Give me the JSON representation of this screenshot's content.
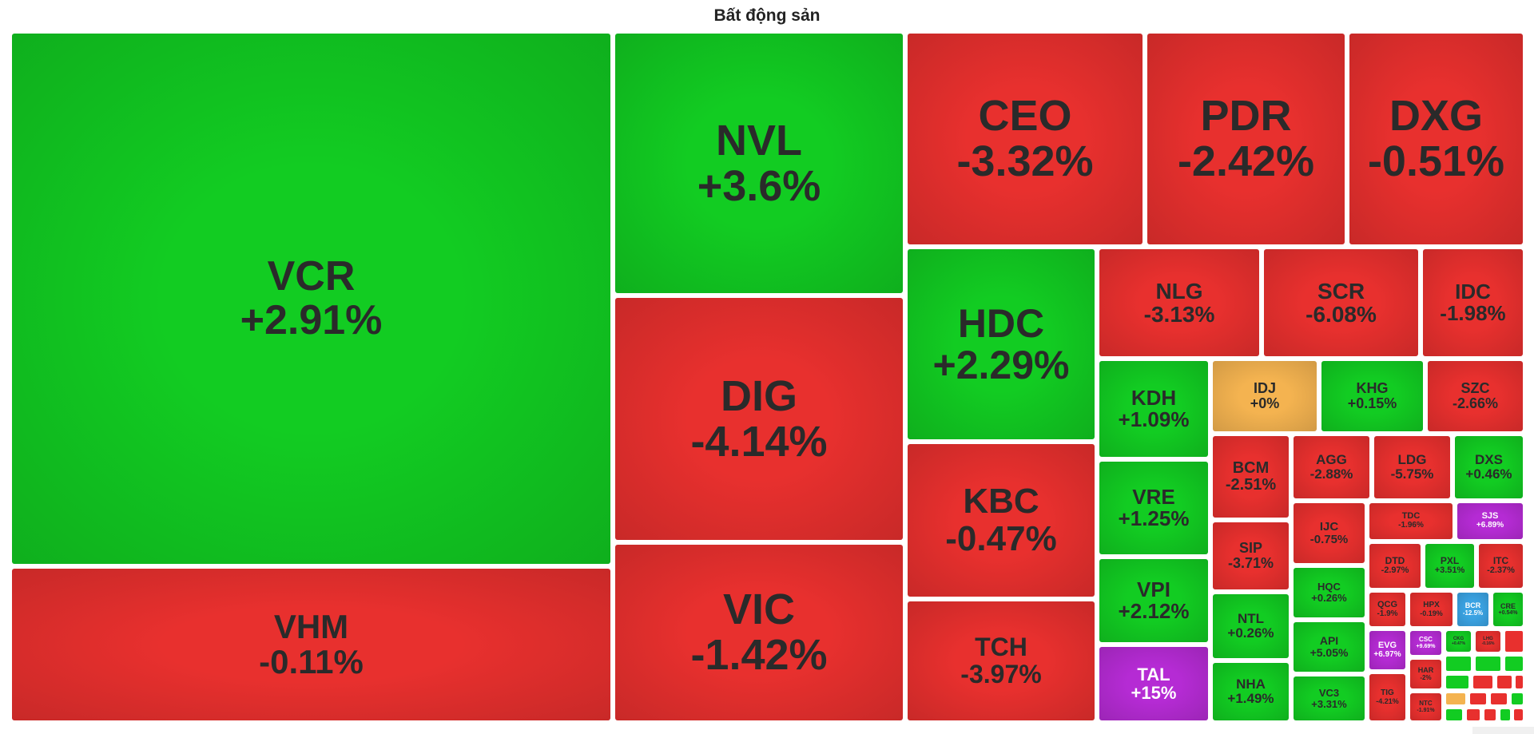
{
  "chart_data": {
    "type": "treemap",
    "title": "Bất động sản",
    "colors": {
      "up": "#12cc22",
      "down": "#e8302e",
      "flat": "#f4b350",
      "ceiling": "#b52bd4",
      "floor": "#3aa3e3"
    },
    "items": [
      {
        "ticker": "VCR",
        "change": "+2.91%",
        "value": 2.91
      },
      {
        "ticker": "VHM",
        "change": "-0.11%",
        "value": -0.11
      },
      {
        "ticker": "NVL",
        "change": "+3.6%",
        "value": 3.6
      },
      {
        "ticker": "DIG",
        "change": "-4.14%",
        "value": -4.14
      },
      {
        "ticker": "VIC",
        "change": "-1.42%",
        "value": -1.42
      },
      {
        "ticker": "CEO",
        "change": "-3.32%",
        "value": -3.32
      },
      {
        "ticker": "PDR",
        "change": "-2.42%",
        "value": -2.42
      },
      {
        "ticker": "DXG",
        "change": "-0.51%",
        "value": -0.51
      },
      {
        "ticker": "HDC",
        "change": "+2.29%",
        "value": 2.29
      },
      {
        "ticker": "KBC",
        "change": "-0.47%",
        "value": -0.47
      },
      {
        "ticker": "TCH",
        "change": "-3.97%",
        "value": -3.97
      },
      {
        "ticker": "NLG",
        "change": "-3.13%",
        "value": -3.13
      },
      {
        "ticker": "SCR",
        "change": "-6.08%",
        "value": -6.08
      },
      {
        "ticker": "IDC",
        "change": "-1.98%",
        "value": -1.98
      },
      {
        "ticker": "KDH",
        "change": "+1.09%",
        "value": 1.09
      },
      {
        "ticker": "VRE",
        "change": "+1.25%",
        "value": 1.25
      },
      {
        "ticker": "VPI",
        "change": "+2.12%",
        "value": 2.12
      },
      {
        "ticker": "TAL",
        "change": "+15%",
        "value": 15,
        "state": "ceiling"
      },
      {
        "ticker": "IDJ",
        "change": "+0%",
        "value": 0
      },
      {
        "ticker": "KHG",
        "change": "+0.15%",
        "value": 0.15
      },
      {
        "ticker": "SZC",
        "change": "-2.66%",
        "value": -2.66
      },
      {
        "ticker": "BCM",
        "change": "-2.51%",
        "value": -2.51
      },
      {
        "ticker": "SIP",
        "change": "-3.71%",
        "value": -3.71
      },
      {
        "ticker": "NTL",
        "change": "+0.26%",
        "value": 0.26
      },
      {
        "ticker": "NHA",
        "change": "+1.49%",
        "value": 1.49
      },
      {
        "ticker": "AGG",
        "change": "-2.88%",
        "value": -2.88
      },
      {
        "ticker": "LDG",
        "change": "-5.75%",
        "value": -5.75
      },
      {
        "ticker": "DXS",
        "change": "+0.46%",
        "value": 0.46
      },
      {
        "ticker": "IJC",
        "change": "-0.75%",
        "value": -0.75
      },
      {
        "ticker": "HQC",
        "change": "+0.26%",
        "value": 0.26
      },
      {
        "ticker": "API",
        "change": "+5.05%",
        "value": 5.05
      },
      {
        "ticker": "VC3",
        "change": "+3.31%",
        "value": 3.31
      },
      {
        "ticker": "TDC",
        "change": "-1.96%",
        "value": -1.96
      },
      {
        "ticker": "SJS",
        "change": "+6.89%",
        "value": 6.89,
        "state": "ceiling"
      },
      {
        "ticker": "DTD",
        "change": "-2.97%",
        "value": -2.97
      },
      {
        "ticker": "PXL",
        "change": "+3.51%",
        "value": 3.51
      },
      {
        "ticker": "ITC",
        "change": "-2.37%",
        "value": -2.37
      },
      {
        "ticker": "QCG",
        "change": "-1.9%",
        "value": -1.9
      },
      {
        "ticker": "HPX",
        "change": "-0.19%",
        "value": -0.19
      },
      {
        "ticker": "BCR",
        "change": "-12.5%",
        "value": -12.5,
        "state": "floor"
      },
      {
        "ticker": "CRE",
        "change": "+0.54%",
        "value": 0.54
      },
      {
        "ticker": "EVG",
        "change": "+6.97%",
        "value": 6.97,
        "state": "ceiling"
      },
      {
        "ticker": "CSC",
        "change": "+9.69%",
        "value": 9.69,
        "state": "ceiling"
      },
      {
        "ticker": "HAR",
        "change": "-2%",
        "value": -2
      },
      {
        "ticker": "TIG",
        "change": "-4.21%",
        "value": -4.21
      },
      {
        "ticker": "NTC",
        "change": "-1.91%",
        "value": -1.91
      },
      {
        "ticker": "CKG",
        "change": "+0.47%",
        "value": 0.47
      },
      {
        "ticker": "LHG",
        "change": "-0.16%",
        "value": -0.16
      }
    ]
  }
}
